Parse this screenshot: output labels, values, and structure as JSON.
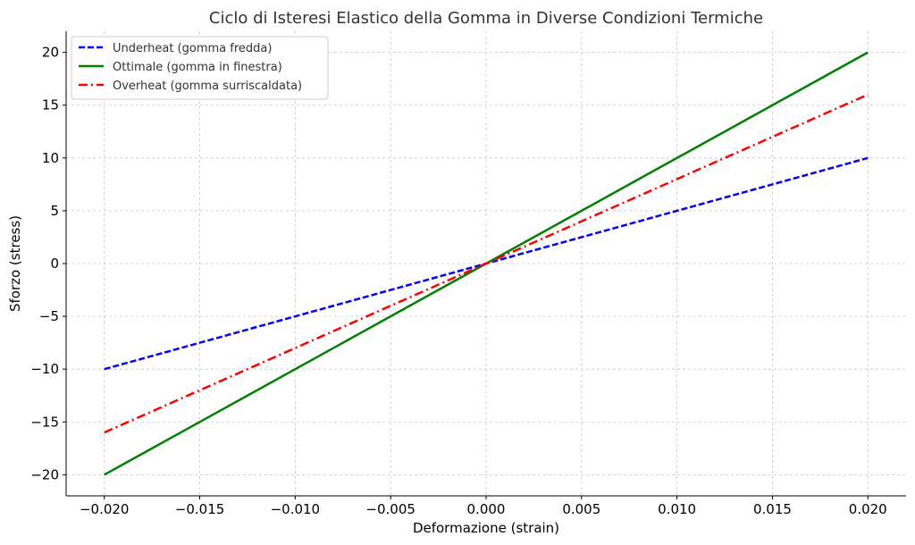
{
  "chart_data": {
    "type": "line",
    "title": "Ciclo di Isteresi Elastico della Gomma in Diverse Condizioni Termiche",
    "xlabel": "Deformazione (strain)",
    "ylabel": "Sforzo (stress)",
    "xlim": [
      -0.022,
      0.022
    ],
    "ylim": [
      -22,
      22
    ],
    "x_ticks": [
      -0.02,
      -0.015,
      -0.01,
      -0.005,
      0.0,
      0.005,
      0.01,
      0.015,
      0.02
    ],
    "x_tick_labels": [
      "−0.020",
      "−0.015",
      "−0.010",
      "−0.005",
      "0.000",
      "0.005",
      "0.010",
      "0.015",
      "0.020"
    ],
    "y_ticks": [
      -20,
      -15,
      -10,
      -5,
      0,
      5,
      10,
      15,
      20
    ],
    "y_tick_labels": [
      "−20",
      "−15",
      "−10",
      "−5",
      "0",
      "5",
      "10",
      "15",
      "20"
    ],
    "grid": true,
    "legend_position": "top-left",
    "series": [
      {
        "name": "Underheat (gomma fredda)",
        "color": "#0000ff",
        "style": "dashed",
        "x": [
          -0.02,
          0.02
        ],
        "y": [
          -10,
          10
        ]
      },
      {
        "name": "Ottimale (gomma in finestra)",
        "color": "#008000",
        "style": "solid",
        "x": [
          -0.02,
          0.02
        ],
        "y": [
          -20,
          20
        ]
      },
      {
        "name": "Overheat (gomma surriscaldata)",
        "color": "#ff0000",
        "style": "dashdot",
        "x": [
          -0.02,
          0.02
        ],
        "y": [
          -16,
          16
        ]
      }
    ]
  }
}
